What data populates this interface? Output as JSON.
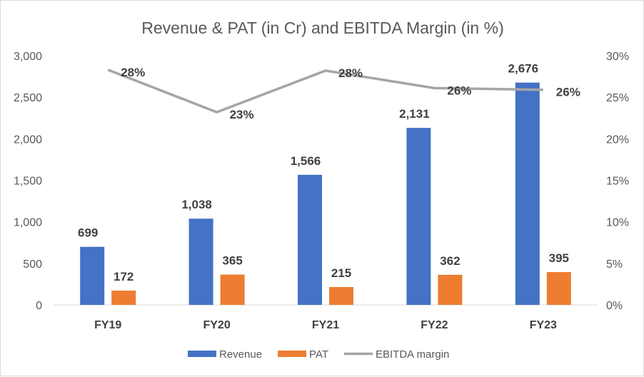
{
  "chart_data": {
    "type": "bar+line",
    "title": "Revenue & PAT (in Cr) and EBITDA Margin (in %)",
    "categories": [
      "FY19",
      "FY20",
      "FY21",
      "FY22",
      "FY23"
    ],
    "series": [
      {
        "name": "Revenue",
        "type": "bar",
        "axis": "left",
        "color": "#4472C4",
        "values": [
          699,
          1038,
          1566,
          2131,
          2676
        ],
        "labels": [
          "699",
          "1,038",
          "1,566",
          "2,131",
          "2,676"
        ]
      },
      {
        "name": "PAT",
        "type": "bar",
        "axis": "left",
        "color": "#ED7D31",
        "values": [
          172,
          365,
          215,
          362,
          395
        ],
        "labels": [
          "172",
          "365",
          "215",
          "362",
          "395"
        ]
      },
      {
        "name": "EBITDA margin",
        "type": "line",
        "axis": "right",
        "color": "#A5A5A5",
        "values": [
          28.3,
          23.2,
          28.2,
          26.1,
          25.9
        ],
        "labels": [
          "28%",
          "23%",
          "28%",
          "26%",
          "26%"
        ]
      }
    ],
    "ylim_left": [
      0,
      3000
    ],
    "yticks_left": [
      "0",
      "500",
      "1,000",
      "1,500",
      "2,000",
      "2,500",
      "3,000"
    ],
    "ylim_right": [
      0,
      30
    ],
    "yticks_right": [
      "0%",
      "5%",
      "10%",
      "15%",
      "20%",
      "25%",
      "30%"
    ],
    "grid": false,
    "legend": "bottom"
  }
}
